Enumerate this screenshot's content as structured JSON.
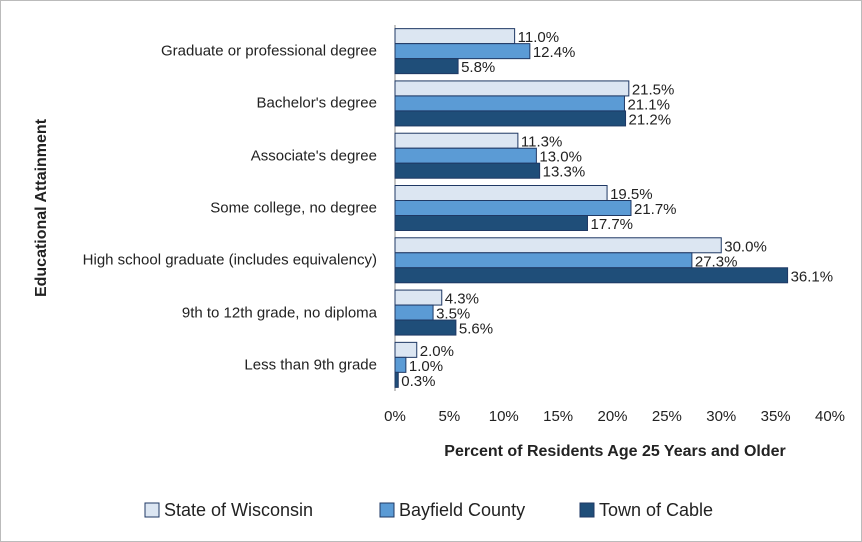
{
  "chart_data": {
    "type": "bar",
    "orientation": "horizontal",
    "xlabel": "Percent of Residents Age 25 Years and Older",
    "ylabel": "Educational Attainment",
    "categories": [
      "Graduate or professional degree",
      "Bachelor's degree",
      "Associate's degree",
      "Some college, no degree",
      "High school graduate (includes equivalency)",
      "9th to 12th grade, no diploma",
      "Less than 9th grade"
    ],
    "series": [
      {
        "name": "State of Wisconsin",
        "color": "#dce6f2",
        "values": [
          11.0,
          21.5,
          11.3,
          19.5,
          30.0,
          4.3,
          2.0
        ],
        "value_labels": [
          "11.0%",
          "21.5%",
          "11.3%",
          "19.5%",
          "30.0%",
          "4.3%",
          "2.0%"
        ]
      },
      {
        "name": "Bayfield County",
        "color": "#5b9bd5",
        "values": [
          12.4,
          21.1,
          13.0,
          21.7,
          27.3,
          3.5,
          1.0
        ],
        "value_labels": [
          "12.4%",
          "21.1%",
          "13.0%",
          "21.7%",
          "27.3%",
          "3.5%",
          "1.0%"
        ]
      },
      {
        "name": "Town of Cable",
        "color": "#1f4e79",
        "values": [
          5.8,
          21.2,
          13.3,
          17.7,
          36.1,
          5.6,
          0.3
        ],
        "value_labels": [
          "5.8%",
          "21.2%",
          "13.3%",
          "17.7%",
          "36.1%",
          "5.6%",
          "0.3%"
        ]
      }
    ],
    "xlim": [
      0,
      40
    ],
    "xticks": [
      {
        "value": 0,
        "label": "0%"
      },
      {
        "value": 5,
        "label": "5%"
      },
      {
        "value": 10,
        "label": "10%"
      },
      {
        "value": 15,
        "label": "15%"
      },
      {
        "value": 20,
        "label": "20%"
      },
      {
        "value": 25,
        "label": "25%"
      },
      {
        "value": 30,
        "label": "30%"
      },
      {
        "value": 35,
        "label": "35%"
      },
      {
        "value": 40,
        "label": "40%"
      }
    ],
    "legend": "bottom",
    "grid": false
  }
}
